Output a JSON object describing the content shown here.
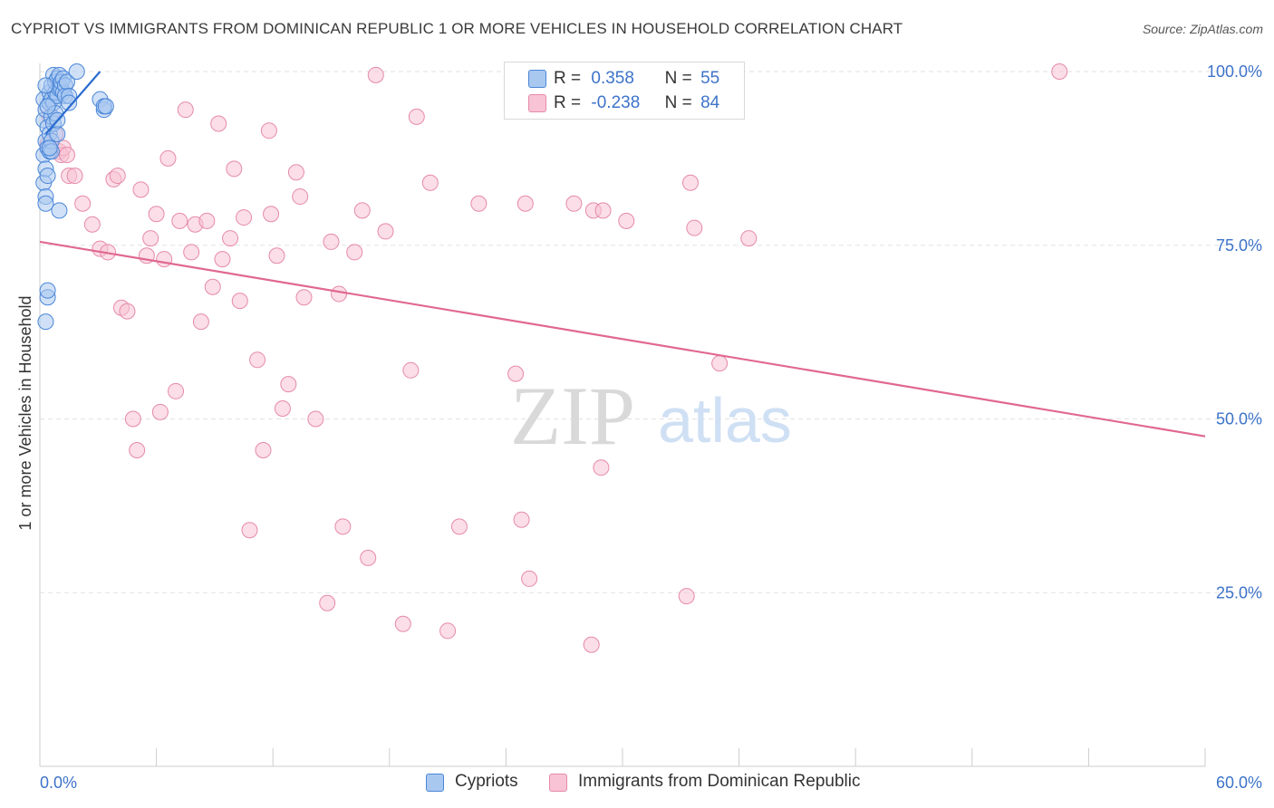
{
  "title": "CYPRIOT VS IMMIGRANTS FROM DOMINICAN REPUBLIC 1 OR MORE VEHICLES IN HOUSEHOLD CORRELATION CHART",
  "source": "Source: ZipAtlas.com",
  "watermark": {
    "zip": "ZIP",
    "atlas": "atlas"
  },
  "legend": {
    "r_label": "R =",
    "n_label": "N =",
    "cypriots": {
      "r": "0.358",
      "n": "55"
    },
    "dominican": {
      "r": "-0.238",
      "n": "84"
    }
  },
  "colors": {
    "cypriots_fill": "#a9c8f0",
    "cypriots_stroke": "#4a86d8",
    "cypriots_line": "#2b6cd0",
    "dominican_fill": "#f8c3d4",
    "dominican_stroke": "#e68aa9",
    "dominican_line": "#e06890",
    "axis_label": "#3d73c9",
    "grid": "#e2e2e2"
  },
  "chart_data": {
    "type": "scatter",
    "title": "CYPRIOT VS IMMIGRANTS FROM DOMINICAN REPUBLIC 1 OR MORE VEHICLES IN HOUSEHOLD CORRELATION CHART",
    "xlabel": "",
    "ylabel": "1 or more Vehicles in Household",
    "xlim": [
      0,
      60
    ],
    "ylim": [
      0,
      100
    ],
    "x_tick_labels": [
      "0.0%",
      "60.0%"
    ],
    "y_ticks": [
      25,
      50,
      75,
      100
    ],
    "y_tick_labels": [
      "25.0%",
      "50.0%",
      "75.0%",
      "100.0%"
    ],
    "grid": "horizontal dashed",
    "legend_position": "bottom",
    "series": [
      {
        "name": "Cypriots",
        "trend": {
          "x": [
            0.3,
            3.1
          ],
          "y": [
            91.0,
            100.0
          ]
        },
        "points": [
          [
            0.2,
            93.0
          ],
          [
            0.2,
            88.0
          ],
          [
            0.2,
            84.0
          ],
          [
            0.2,
            96.0
          ],
          [
            0.3,
            82.0
          ],
          [
            0.3,
            86.0
          ],
          [
            0.3,
            90.0
          ],
          [
            0.3,
            94.5
          ],
          [
            0.3,
            81.0
          ],
          [
            0.3,
            64.0
          ],
          [
            0.4,
            67.5
          ],
          [
            0.4,
            68.5
          ],
          [
            0.4,
            85.0
          ],
          [
            0.4,
            89.0
          ],
          [
            0.4,
            92.0
          ],
          [
            0.5,
            95.5
          ],
          [
            0.5,
            97.0
          ],
          [
            0.5,
            91.0
          ],
          [
            0.5,
            88.5
          ],
          [
            0.6,
            96.0
          ],
          [
            0.6,
            93.5
          ],
          [
            0.6,
            98.0
          ],
          [
            0.6,
            90.0
          ],
          [
            0.7,
            99.5
          ],
          [
            0.7,
            95.5
          ],
          [
            0.7,
            92.5
          ],
          [
            0.8,
            97.0
          ],
          [
            0.8,
            94.0
          ],
          [
            0.8,
            98.5
          ],
          [
            0.9,
            99.0
          ],
          [
            0.9,
            96.5
          ],
          [
            0.9,
            91.0
          ],
          [
            1.0,
            98.0
          ],
          [
            1.0,
            97.5
          ],
          [
            1.0,
            99.5
          ],
          [
            1.0,
            80.0
          ],
          [
            1.1,
            97.5
          ],
          [
            1.1,
            98.5
          ],
          [
            1.2,
            97.0
          ],
          [
            1.2,
            99.0
          ],
          [
            1.3,
            98.0
          ],
          [
            1.3,
            96.5
          ],
          [
            1.4,
            98.5
          ],
          [
            1.5,
            96.5
          ],
          [
            1.5,
            95.5
          ],
          [
            0.6,
            88.5
          ],
          [
            0.5,
            89.0
          ],
          [
            0.4,
            95.0
          ],
          [
            0.3,
            98.0
          ],
          [
            1.9,
            100.0
          ],
          [
            3.1,
            96.0
          ],
          [
            3.3,
            94.5
          ],
          [
            3.3,
            95.0
          ],
          [
            3.4,
            95.0
          ],
          [
            0.9,
            93.0
          ]
        ]
      },
      {
        "name": "Immigrants from Dominican Republic",
        "trend": {
          "x": [
            0.0,
            60.0
          ],
          "y": [
            75.5,
            47.5
          ]
        },
        "points": [
          [
            0.4,
            89.5
          ],
          [
            0.5,
            93.5
          ],
          [
            0.8,
            91.0
          ],
          [
            1.0,
            88.5
          ],
          [
            1.1,
            88.0
          ],
          [
            1.2,
            89.0
          ],
          [
            1.4,
            88.0
          ],
          [
            1.5,
            85.0
          ],
          [
            1.8,
            85.0
          ],
          [
            2.2,
            81.0
          ],
          [
            2.7,
            78.0
          ],
          [
            3.1,
            74.5
          ],
          [
            3.5,
            74.0
          ],
          [
            3.8,
            84.5
          ],
          [
            4.0,
            85.0
          ],
          [
            4.2,
            66.0
          ],
          [
            4.5,
            65.5
          ],
          [
            4.8,
            50.0
          ],
          [
            5.0,
            45.5
          ],
          [
            5.2,
            83.0
          ],
          [
            5.5,
            73.5
          ],
          [
            5.7,
            76.0
          ],
          [
            6.0,
            79.5
          ],
          [
            6.2,
            51.0
          ],
          [
            6.4,
            73.0
          ],
          [
            6.6,
            87.5
          ],
          [
            7.0,
            54.0
          ],
          [
            7.2,
            78.5
          ],
          [
            7.5,
            94.5
          ],
          [
            7.8,
            74.0
          ],
          [
            8.0,
            78.0
          ],
          [
            8.3,
            64.0
          ],
          [
            8.6,
            78.5
          ],
          [
            8.9,
            69.0
          ],
          [
            9.2,
            92.5
          ],
          [
            9.4,
            73.0
          ],
          [
            9.8,
            76.0
          ],
          [
            10.0,
            86.0
          ],
          [
            10.3,
            67.0
          ],
          [
            10.5,
            79.0
          ],
          [
            10.8,
            34.0
          ],
          [
            11.2,
            58.5
          ],
          [
            11.5,
            45.5
          ],
          [
            11.8,
            91.5
          ],
          [
            11.9,
            79.5
          ],
          [
            12.2,
            73.5
          ],
          [
            12.5,
            51.5
          ],
          [
            12.8,
            55.0
          ],
          [
            13.2,
            85.5
          ],
          [
            13.4,
            82.0
          ],
          [
            13.6,
            67.5
          ],
          [
            14.2,
            50.0
          ],
          [
            14.8,
            23.5
          ],
          [
            15.0,
            75.5
          ],
          [
            15.4,
            68.0
          ],
          [
            15.6,
            34.5
          ],
          [
            16.2,
            74.0
          ],
          [
            16.6,
            80.0
          ],
          [
            16.9,
            30.0
          ],
          [
            17.3,
            99.5
          ],
          [
            17.8,
            77.0
          ],
          [
            18.7,
            20.5
          ],
          [
            19.1,
            57.0
          ],
          [
            19.4,
            93.5
          ],
          [
            20.1,
            84.0
          ],
          [
            21.0,
            19.5
          ],
          [
            21.6,
            34.5
          ],
          [
            22.6,
            81.0
          ],
          [
            24.5,
            56.5
          ],
          [
            24.8,
            35.5
          ],
          [
            25.0,
            81.0
          ],
          [
            25.2,
            27.0
          ],
          [
            27.5,
            81.0
          ],
          [
            28.4,
            17.5
          ],
          [
            28.9,
            43.0
          ],
          [
            28.5,
            80.0
          ],
          [
            29.0,
            80.0
          ],
          [
            30.2,
            78.5
          ],
          [
            33.3,
            24.5
          ],
          [
            33.5,
            84.0
          ],
          [
            33.7,
            77.5
          ],
          [
            35.0,
            58.0
          ],
          [
            36.5,
            76.0
          ],
          [
            52.5,
            100.0
          ]
        ]
      }
    ]
  }
}
